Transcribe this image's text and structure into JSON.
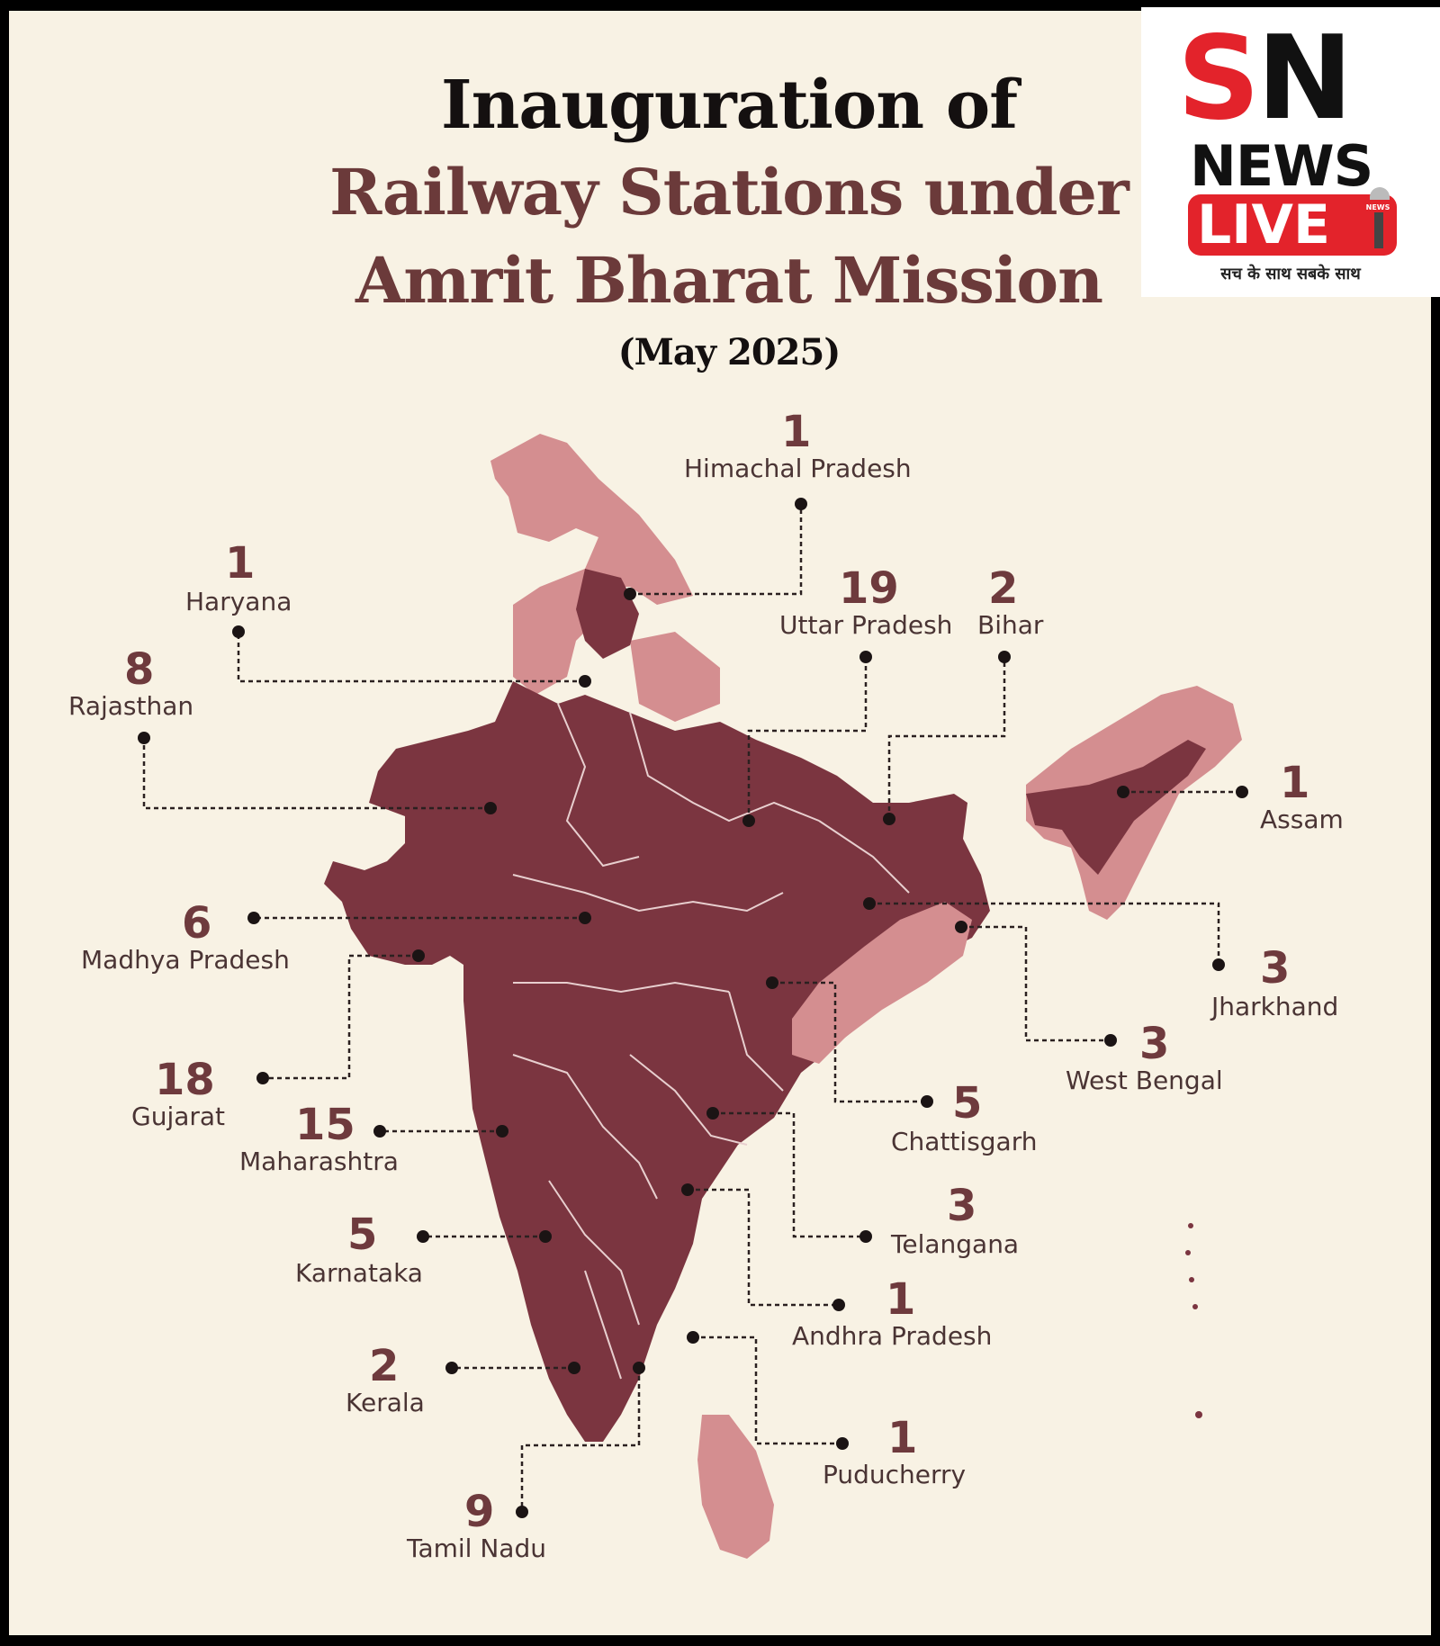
{
  "title": {
    "line1": "Inauguration of",
    "line2": "Railway Stations under",
    "line3": "Amrit Bharat Mission",
    "line4": "(May 2025)"
  },
  "colors": {
    "background": "#f8f2e4",
    "highlighted_state": "#7b3540",
    "other_region": "#d48e90",
    "border": "#e8cfcf",
    "leader_line": "#2b2020"
  },
  "legend_note": "",
  "states": [
    {
      "name": "Himachal Pradesh",
      "count": "1"
    },
    {
      "name": "Haryana",
      "count": "1"
    },
    {
      "name": "Rajasthan",
      "count": "8"
    },
    {
      "name": "Uttar Pradesh",
      "count": "19"
    },
    {
      "name": "Bihar",
      "count": "2"
    },
    {
      "name": "Assam",
      "count": "1"
    },
    {
      "name": "Madhya Pradesh",
      "count": "6"
    },
    {
      "name": "Jharkhand",
      "count": "3"
    },
    {
      "name": "West Bengal",
      "count": "3"
    },
    {
      "name": "Gujarat",
      "count": "18"
    },
    {
      "name": "Maharashtra",
      "count": "15"
    },
    {
      "name": "Chattisgarh",
      "count": "5"
    },
    {
      "name": "Telangana",
      "count": "3"
    },
    {
      "name": "Karnataka",
      "count": "5"
    },
    {
      "name": "Andhra Pradesh",
      "count": "1"
    },
    {
      "name": "Kerala",
      "count": "2"
    },
    {
      "name": "Puducherry",
      "count": "1"
    },
    {
      "name": "Tamil Nadu",
      "count": "9"
    }
  ],
  "logo": {
    "letter_s": "S",
    "letter_n": "N",
    "news": "NEWS",
    "live": "LIVE",
    "tagline": "सच के साथ सबके साथ",
    "mic_badge": "NEWS"
  }
}
